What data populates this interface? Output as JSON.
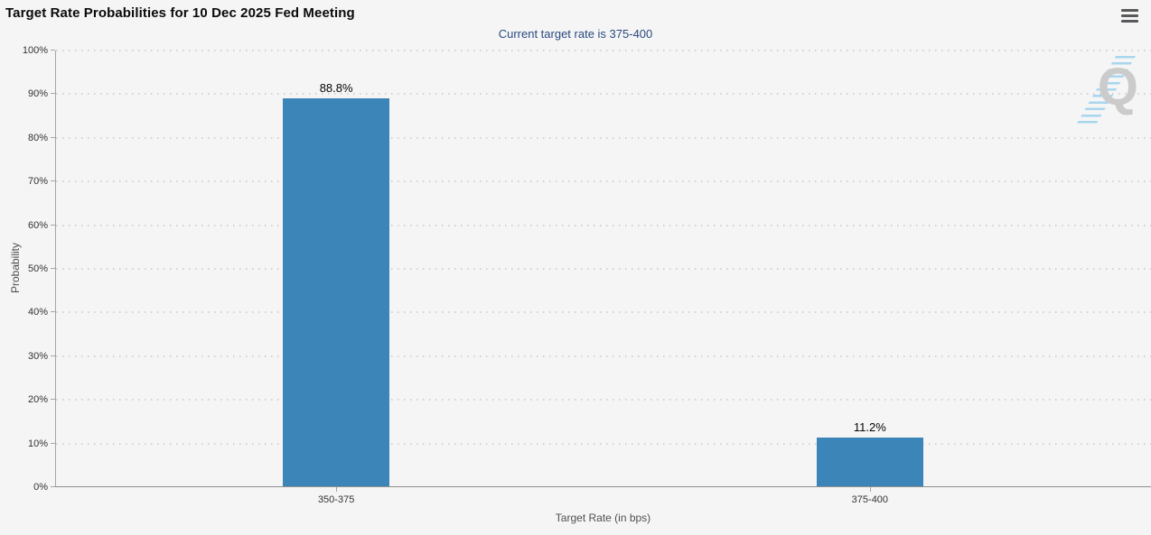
{
  "controls": {
    "menu_icon": "hamburger-icon"
  },
  "chart_data": {
    "type": "bar",
    "title": "Target Rate Probabilities for 10 Dec 2025 Fed Meeting",
    "subtitle": "Current target rate is 375-400",
    "xlabel": "Target Rate (in bps)",
    "ylabel": "Probability",
    "categories": [
      "350-375",
      "375-400"
    ],
    "values": [
      88.8,
      11.2
    ],
    "value_labels": [
      "88.8%",
      "11.2%"
    ],
    "ylim": [
      0,
      100
    ],
    "ytick_interval": 10,
    "ytick_labels": [
      "0%",
      "10%",
      "20%",
      "30%",
      "40%",
      "50%",
      "60%",
      "70%",
      "80%",
      "90%",
      "100%"
    ],
    "grid": "horizontal-dotted",
    "legend_position": "none",
    "bar_color": "#3c85b8",
    "subtitle_color": "#2a4a7e",
    "background_color": "#f5f5f6",
    "watermark_letter": "Q"
  }
}
